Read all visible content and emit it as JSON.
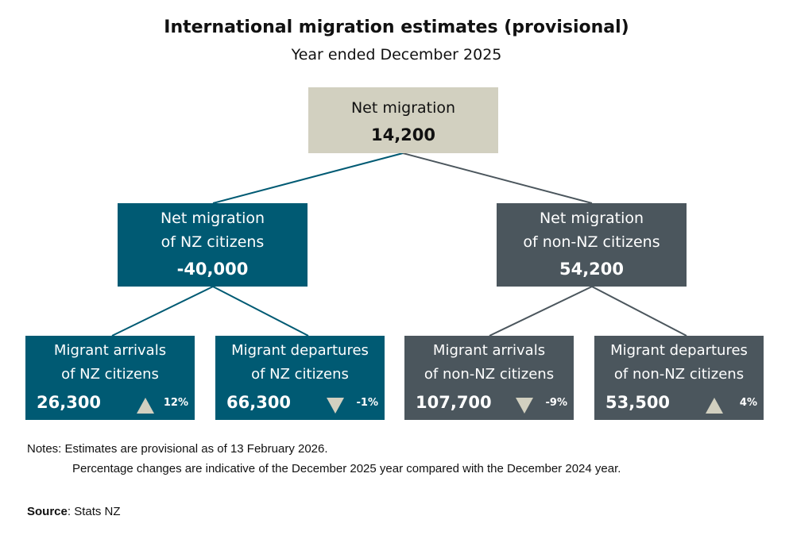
{
  "title": "International migration estimates (provisional)",
  "subtitle": "Year ended December 2025",
  "colors": {
    "teal": "#005a73",
    "grey": "#4b565d",
    "beige": "#d2d0c0",
    "arrow": "#d2d0c0"
  },
  "top": {
    "label": "Net migration",
    "value": "14,200"
  },
  "nz_citizens": {
    "line1": "Net migration",
    "line2": "of NZ citizens",
    "value": "-40,000",
    "arrivals": {
      "line1": "Migrant arrivals",
      "line2": "of NZ citizens",
      "value": "26,300",
      "direction": "up",
      "pct": "12%"
    },
    "departures": {
      "line1": "Migrant departures",
      "line2": "of NZ citizens",
      "value": "66,300",
      "direction": "down",
      "pct": "-1%"
    }
  },
  "non_nz_citizens": {
    "line1": "Net migration",
    "line2": "of non-NZ citizens",
    "value": "54,200",
    "arrivals": {
      "line1": "Migrant arrivals",
      "line2": "of non-NZ citizens",
      "value": "107,700",
      "direction": "down",
      "pct": "-9%"
    },
    "departures": {
      "line1": "Migrant departures",
      "line2": "of non-NZ citizens",
      "value": "53,500",
      "direction": "up",
      "pct": "4%"
    }
  },
  "notes": {
    "line1": "Notes: Estimates are provisional as of 13 February 2026.",
    "line2": "Percentage changes are indicative of the December 2025 year compared with the December 2024 year."
  },
  "source": {
    "label": "Source",
    "text": ": Stats NZ"
  }
}
